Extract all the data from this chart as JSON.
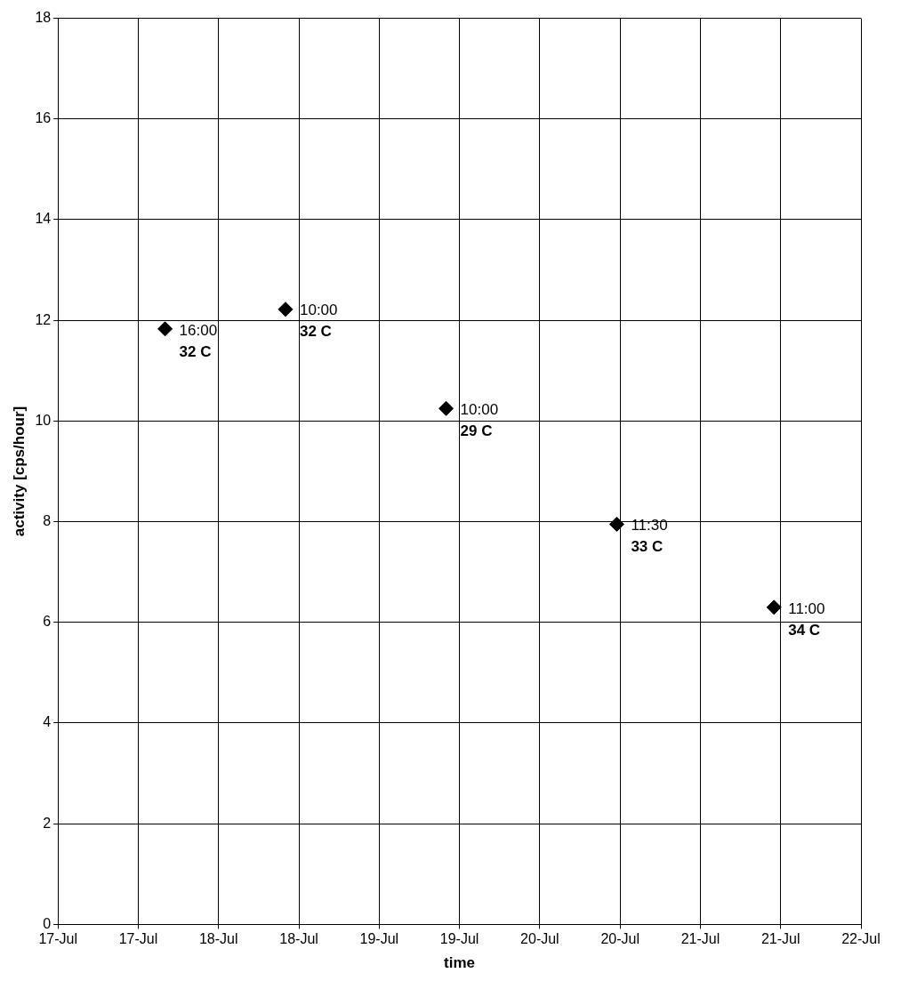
{
  "chart_data": {
    "type": "scatter",
    "xlabel": "time",
    "ylabel": "activity [cps/hour]",
    "x": [
      "--07-17T16:00",
      "--07-18T10:00",
      "--07-19T10:00",
      "--07-20T11:30",
      "--07-21T11:00"
    ],
    "series": [
      {
        "color": "#000000",
        "values": [
          11.83,
          12.22,
          10.25,
          7.95,
          6.3
        ]
      }
    ],
    "marker": "diamond",
    "grid": true,
    "legend": false,
    "xlim": [
      "--07-17T00:00",
      "--07-22T00:00"
    ],
    "xticks": [
      {
        "value": "--07-17T00:00",
        "label": "17-Jul"
      },
      {
        "value": "--07-17T12:00",
        "label": "17-Jul"
      },
      {
        "value": "--07-18T00:00",
        "label": "18-Jul"
      },
      {
        "value": "--07-18T12:00",
        "label": "18-Jul"
      },
      {
        "value": "--07-19T00:00",
        "label": "19-Jul"
      },
      {
        "value": "--07-19T12:00",
        "label": "19-Jul"
      },
      {
        "value": "--07-20T00:00",
        "label": "20-Jul"
      },
      {
        "value": "--07-20T12:00",
        "label": "20-Jul"
      },
      {
        "value": "--07-21T00:00",
        "label": "21-Jul"
      },
      {
        "value": "--07-21T12:00",
        "label": "21-Jul"
      },
      {
        "value": "--07-22T00:00",
        "label": "22-Jul"
      }
    ],
    "ylim": [
      0,
      18
    ],
    "yticks": [
      0,
      2,
      4,
      6,
      8,
      10,
      12,
      14,
      16,
      18
    ],
    "annotations": [
      {
        "text": "16:00\n32 C",
        "x": "--07-17T16:00",
        "y": 11.83
      },
      {
        "text": "10:00\n32 C",
        "x": "--07-18T10:00",
        "y": 12.22
      },
      {
        "text": "10:00\n29 C",
        "x": "--07-19T10:00",
        "y": 10.25
      },
      {
        "text": "11:30\n33 C",
        "x": "--07-20T11:30",
        "y": 7.95
      },
      {
        "text": "11:00\n34 C",
        "x": "--07-21T11:00",
        "y": 6.3
      }
    ]
  }
}
